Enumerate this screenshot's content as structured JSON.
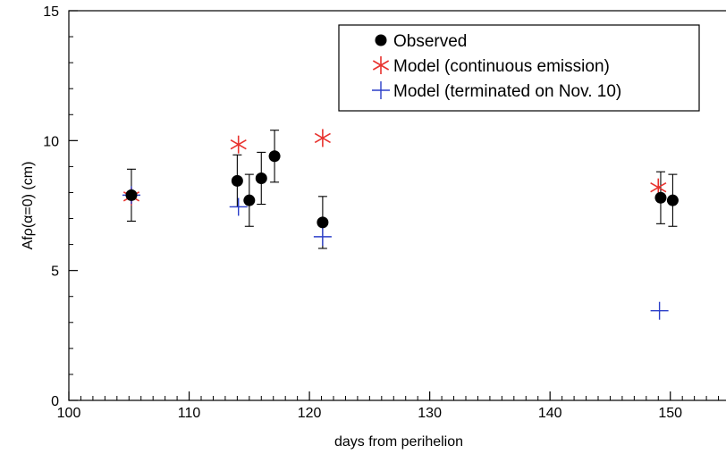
{
  "chart_data": {
    "type": "scatter",
    "title": "",
    "xlabel": "days from perihelion",
    "ylabel": "Afρ(α=0) (cm)",
    "xlim": [
      100,
      155
    ],
    "ylim": [
      0,
      15
    ],
    "x_ticks": [
      100,
      110,
      120,
      130,
      140,
      150
    ],
    "y_ticks": [
      0,
      5,
      10,
      15
    ],
    "grid": false,
    "legend_position": "top-right",
    "series": [
      {
        "name": "Observed",
        "marker": "filled-circle",
        "color": "#000000",
        "points": [
          {
            "x": 105.2,
            "y": 7.9,
            "err": 1.0
          },
          {
            "x": 114.0,
            "y": 8.45,
            "err": 1.0
          },
          {
            "x": 115.0,
            "y": 7.7,
            "err": 1.0
          },
          {
            "x": 116.0,
            "y": 8.55,
            "err": 1.0
          },
          {
            "x": 117.1,
            "y": 9.4,
            "err": 1.0
          },
          {
            "x": 121.1,
            "y": 6.85,
            "err": 1.0
          },
          {
            "x": 149.2,
            "y": 7.8,
            "err": 1.0
          },
          {
            "x": 150.2,
            "y": 7.7,
            "err": 1.0
          }
        ]
      },
      {
        "name": "Model (continuous emission)",
        "marker": "asterisk",
        "color": "#e8322e",
        "points": [
          {
            "x": 105.2,
            "y": 7.85
          },
          {
            "x": 114.1,
            "y": 9.85
          },
          {
            "x": 121.1,
            "y": 10.1
          },
          {
            "x": 149.0,
            "y": 8.2
          }
        ]
      },
      {
        "name": "Model (terminated on Nov. 10)",
        "marker": "plus",
        "color": "#2b3fc9",
        "points": [
          {
            "x": 105.2,
            "y": 7.9
          },
          {
            "x": 114.1,
            "y": 7.45
          },
          {
            "x": 121.1,
            "y": 6.3
          },
          {
            "x": 149.1,
            "y": 3.45
          }
        ]
      }
    ]
  }
}
